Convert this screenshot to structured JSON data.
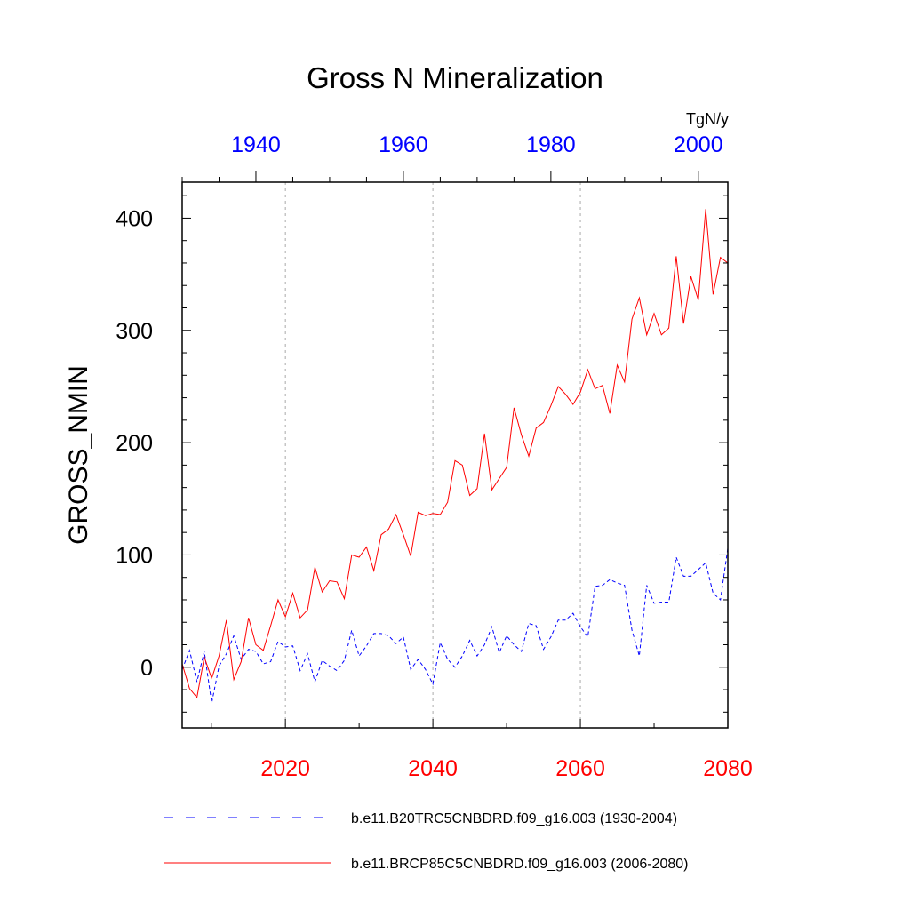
{
  "chart_data": {
    "type": "line",
    "title": "Gross N Mineralization",
    "ylabel": "GROSS_NMIN",
    "units": "TgN/y",
    "ylim": [
      -54,
      432
    ],
    "yticks": [
      0,
      100,
      200,
      300,
      400
    ],
    "bottom_axis": {
      "range": [
        2006,
        2080
      ],
      "ticks": [
        2020,
        2040,
        2060,
        2080
      ],
      "color": "#ff0000"
    },
    "top_axis": {
      "range": [
        1930,
        2004
      ],
      "ticks": [
        1940,
        1960,
        1980,
        2000
      ],
      "color": "#0000ff"
    },
    "grid_x": [
      2020,
      2040,
      2060
    ],
    "series": [
      {
        "name": "b.e11.B20TRC5CNBDRD.f09_g16.003 (1930-2004)",
        "color": "#0000ff",
        "dash": "dashed",
        "axis": "top",
        "x_start": 1930,
        "values": [
          -2,
          15,
          -13,
          14,
          -32,
          1,
          12,
          28,
          7,
          16,
          14,
          3,
          5,
          23,
          18,
          19,
          -3,
          12,
          -13,
          6,
          1,
          -3,
          6,
          33,
          10,
          19,
          30,
          30,
          28,
          21,
          27,
          -2,
          7,
          -2,
          -15,
          22,
          7,
          0,
          10,
          24,
          10,
          20,
          36,
          13,
          28,
          20,
          14,
          39,
          37,
          16,
          27,
          42,
          42,
          48,
          36,
          27,
          72,
          73,
          78,
          75,
          73,
          33,
          10,
          73,
          57,
          58,
          58,
          98,
          81,
          81,
          87,
          93,
          66,
          60,
          106
        ]
      },
      {
        "name": "b.e11.BRCP85C5CNBDRD.f09_g16.003 (2006-2080)",
        "color": "#ff0000",
        "dash": "solid",
        "axis": "bottom",
        "x_start": 2006,
        "values": [
          3,
          -19,
          -27,
          9,
          -10,
          10,
          42,
          -11,
          5,
          44,
          20,
          15,
          37,
          60,
          45,
          66,
          44,
          51,
          89,
          67,
          77,
          76,
          61,
          100,
          98,
          107,
          86,
          118,
          123,
          136,
          118,
          99,
          138,
          135,
          137,
          136,
          147,
          184,
          180,
          153,
          159,
          208,
          158,
          168,
          178,
          231,
          207,
          188,
          213,
          218,
          233,
          250,
          243,
          234,
          245,
          265,
          248,
          251,
          226,
          269,
          254,
          310,
          329,
          296,
          315,
          296,
          302,
          366,
          306,
          348,
          327,
          408,
          332,
          365,
          360
        ]
      }
    ]
  }
}
